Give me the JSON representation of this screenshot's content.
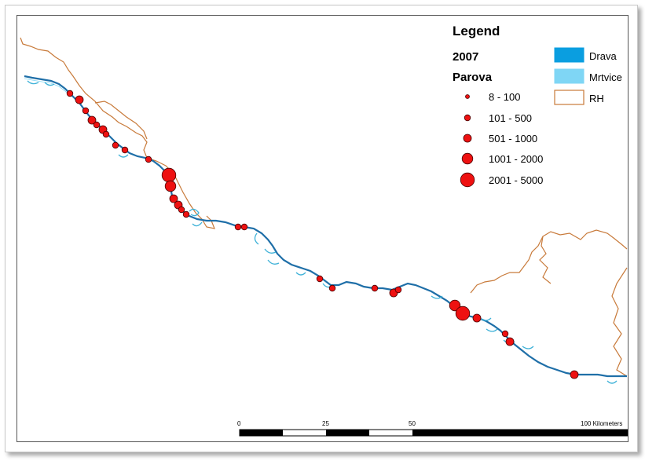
{
  "legend": {
    "title": "Legend",
    "year": "2007",
    "layer": "Parova",
    "classes": [
      {
        "label": "8 - 100",
        "size_rank": 1
      },
      {
        "label": "101 - 500",
        "size_rank": 2
      },
      {
        "label": "501 - 1000",
        "size_rank": 3
      },
      {
        "label": "1001 - 2000",
        "size_rank": 4
      },
      {
        "label": "2001 - 5000",
        "size_rank": 5
      }
    ],
    "layers": [
      {
        "label": "Drava",
        "color": "#0a9ee0"
      },
      {
        "label": "Mrtvice",
        "color": "#7fd6f5"
      },
      {
        "label": "RH",
        "color": "#c87a3a"
      }
    ]
  },
  "scale_bar": {
    "ticks": [
      "0",
      "25",
      "50",
      "100 Kilometers"
    ]
  },
  "colors": {
    "river": "#1f6fa8",
    "oxbow": "#3fb2d8",
    "border": "#c87a3a",
    "point_fill": "#ee1111",
    "point_stroke": "#4a0000"
  }
}
